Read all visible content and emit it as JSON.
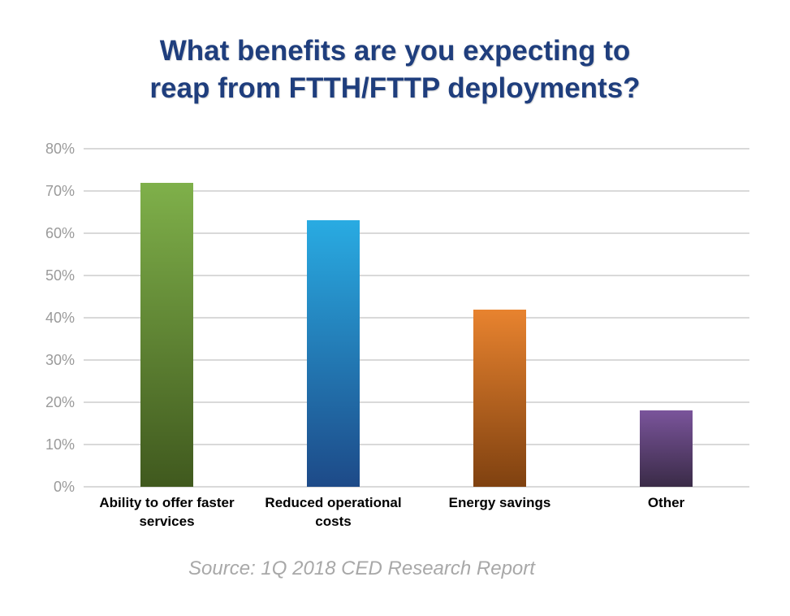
{
  "title_lines": {
    "line1": "What benefits are you expecting to",
    "line2": "reap from FTTH/FTTP deployments?"
  },
  "source": "Source: 1Q 2018 CED Research Report",
  "colors": {
    "title_text": "#1f3e7d",
    "gridline": "#d9d9d9",
    "tick_label": "#9a9a9a",
    "source_text": "#a8a8a8"
  },
  "chart_data": {
    "type": "bar",
    "title": "What benefits are you expecting to reap from FTTH/FTTP deployments?",
    "categories": [
      "Ability to offer faster services",
      "Reduced operational costs",
      "Energy savings",
      "Other"
    ],
    "values": [
      72,
      63,
      42,
      18
    ],
    "value_unit": "%",
    "xlabel": "",
    "ylabel": "",
    "ylim": [
      0,
      80
    ],
    "ytick_step": 10,
    "ytick_suffix": "%",
    "grid": "horizontal",
    "legend": "none",
    "bar_gradients": [
      {
        "top": "#7fb04a",
        "bottom": "#40591e"
      },
      {
        "top": "#29abe2",
        "bottom": "#1d4a88"
      },
      {
        "top": "#e8832f",
        "bottom": "#7f4110"
      },
      {
        "top": "#7a549b",
        "bottom": "#3a2b47"
      }
    ],
    "source_note": "Source: 1Q 2018 CED Research Report"
  }
}
